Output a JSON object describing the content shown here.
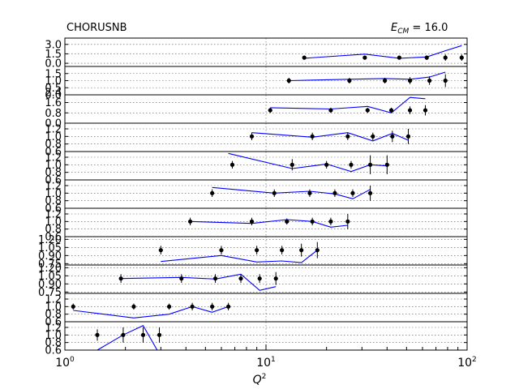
{
  "chart_data": {
    "type": "line",
    "title_left": "CHORUSNB",
    "title_right_prefix": "E",
    "title_right_sub": "CM",
    "title_right_value": " = 16.0",
    "xlabel_base": "Q",
    "xlabel_exp": "2",
    "x_scale": "log",
    "xlim": [
      1,
      100
    ],
    "x_ticks": [
      {
        "value": 1,
        "mant": "10",
        "exp": "0"
      },
      {
        "value": 10,
        "mant": "10",
        "exp": "1"
      },
      {
        "value": 100,
        "mant": "10",
        "exp": "2"
      }
    ],
    "grid": true,
    "panels": [
      {
        "ylim": [
          -0.5,
          4.0
        ],
        "yticks": [
          "0.0",
          "1.5",
          "3.0"
        ],
        "ytick_values": [
          0.0,
          1.5,
          3.0
        ],
        "points": [
          [
            15.5,
            0.9,
            0.15
          ],
          [
            31,
            0.9,
            0.25
          ],
          [
            46,
            0.9,
            0.3
          ],
          [
            63,
            0.9,
            0.35
          ],
          [
            78,
            0.9,
            0.5
          ],
          [
            94,
            0.9,
            0.5
          ]
        ],
        "theory": [
          [
            15.5,
            0.8
          ],
          [
            31,
            1.45
          ],
          [
            46,
            0.8
          ],
          [
            63,
            1.0
          ],
          [
            78,
            2.0
          ],
          [
            94,
            2.8
          ]
        ]
      },
      {
        "ylim": [
          0.0,
          2.0
        ],
        "yticks": [
          "0.0",
          "0.5",
          "1.0",
          "1.5"
        ],
        "ytick_values": [
          0.0,
          0.5,
          1.0,
          1.5
        ],
        "points": [
          [
            13,
            1.0,
            0.2
          ],
          [
            26,
            1.0,
            0.2
          ],
          [
            39,
            1.0,
            0.2
          ],
          [
            52,
            1.0,
            0.25
          ],
          [
            65,
            1.0,
            0.3
          ],
          [
            78,
            1.0,
            0.45
          ]
        ],
        "theory": [
          [
            13,
            1.0
          ],
          [
            26,
            1.1
          ],
          [
            39,
            1.15
          ],
          [
            52,
            1.1
          ],
          [
            65,
            1.25
          ],
          [
            78,
            1.6
          ]
        ]
      },
      {
        "ylim": [
          0.0,
          2.2
        ],
        "yticks": [
          "0.0",
          "0.8",
          "1.6",
          "2.4"
        ],
        "ytick_values": [
          0.0,
          0.8,
          1.6,
          2.4
        ],
        "points": [
          [
            10.5,
            1.0,
            0.2
          ],
          [
            21,
            1.0,
            0.2
          ],
          [
            32,
            1.0,
            0.2
          ],
          [
            42,
            1.0,
            0.2
          ],
          [
            52,
            1.0,
            0.3
          ],
          [
            62,
            1.0,
            0.4
          ]
        ],
        "theory": [
          [
            10.5,
            1.2
          ],
          [
            21,
            1.1
          ],
          [
            32,
            1.3
          ],
          [
            42,
            0.8
          ],
          [
            52,
            2.0
          ],
          [
            62,
            1.9
          ]
        ]
      },
      {
        "ylim": [
          0.6,
          1.35
        ],
        "yticks": [
          "0.6",
          "0.8",
          "1.0",
          "1.2"
        ],
        "ytick_values": [
          0.6,
          0.8,
          1.0,
          1.2
        ],
        "points": [
          [
            8.5,
            1.0,
            0.1
          ],
          [
            17,
            1.0,
            0.1
          ],
          [
            25.5,
            1.0,
            0.1
          ],
          [
            34,
            1.0,
            0.1
          ],
          [
            42.5,
            1.0,
            0.15
          ],
          [
            51,
            1.0,
            0.2
          ]
        ],
        "theory": [
          [
            8.5,
            1.1
          ],
          [
            17,
            0.98
          ],
          [
            25.5,
            1.1
          ],
          [
            34,
            0.88
          ],
          [
            42.5,
            1.08
          ],
          [
            51,
            0.9
          ]
        ]
      },
      {
        "ylim": [
          0.6,
          1.35
        ],
        "yticks": [
          "0.6",
          "0.8",
          "1.0",
          "1.2"
        ],
        "ytick_values": [
          0.6,
          0.8,
          1.0,
          1.2
        ],
        "points": [
          [
            6.8,
            1.0,
            0.1
          ],
          [
            13.5,
            1.0,
            0.15
          ],
          [
            20,
            1.0,
            0.1
          ],
          [
            26.5,
            1.0,
            0.1
          ],
          [
            33,
            1.0,
            0.25
          ],
          [
            40,
            1.0,
            0.25
          ]
        ],
        "theory": [
          [
            6.5,
            1.3
          ],
          [
            13.5,
            0.9
          ],
          [
            20,
            1.02
          ],
          [
            26.5,
            0.82
          ],
          [
            33,
            1.0
          ],
          [
            40,
            0.97
          ]
        ]
      },
      {
        "ylim": [
          0.6,
          1.35
        ],
        "yticks": [
          "0.6",
          "0.8",
          "1.0",
          "1.2"
        ],
        "ytick_values": [
          0.6,
          0.8,
          1.0,
          1.2
        ],
        "points": [
          [
            5.4,
            1.0,
            0.1
          ],
          [
            11,
            1.0,
            0.1
          ],
          [
            16.5,
            1.0,
            0.1
          ],
          [
            22,
            1.0,
            0.1
          ],
          [
            27,
            1.0,
            0.1
          ],
          [
            33,
            1.0,
            0.2
          ]
        ],
        "theory": [
          [
            5.4,
            1.15
          ],
          [
            11,
            1.0
          ],
          [
            16.5,
            1.05
          ],
          [
            22,
            0.98
          ],
          [
            27,
            0.85
          ],
          [
            33,
            1.1
          ]
        ]
      },
      {
        "ylim": [
          0.6,
          1.35
        ],
        "yticks": [
          "0.6",
          "0.8",
          "1.0",
          "1.2"
        ],
        "ytick_values": [
          0.6,
          0.8,
          1.0,
          1.2
        ],
        "points": [
          [
            4.2,
            1.0,
            0.1
          ],
          [
            8.5,
            1.0,
            0.1
          ],
          [
            12.7,
            1.0,
            0.08
          ],
          [
            17,
            1.0,
            0.1
          ],
          [
            21,
            1.0,
            0.1
          ],
          [
            25.5,
            1.0,
            0.2
          ]
        ],
        "theory": [
          [
            4.2,
            1.0
          ],
          [
            8.5,
            0.95
          ],
          [
            12.7,
            1.05
          ],
          [
            17,
            1.0
          ],
          [
            21,
            0.85
          ],
          [
            25.5,
            0.9
          ]
        ]
      },
      {
        "ylim": [
          0.725,
          1.25
        ],
        "yticks": [
          "0.75",
          "0.90",
          "1.05",
          "1.20"
        ],
        "ytick_values": [
          0.75,
          0.9,
          1.05,
          1.2
        ],
        "points": [
          [
            3,
            1.0,
            0.08
          ],
          [
            6,
            1.0,
            0.08
          ],
          [
            9,
            1.0,
            0.08
          ],
          [
            12,
            1.0,
            0.08
          ],
          [
            15,
            1.0,
            0.12
          ],
          [
            18,
            1.0,
            0.15
          ]
        ],
        "theory": [
          [
            3,
            0.79
          ],
          [
            6,
            0.9
          ],
          [
            9,
            0.78
          ],
          [
            12,
            0.8
          ],
          [
            15,
            0.77
          ],
          [
            18,
            1.0
          ]
        ]
      },
      {
        "ylim": [
          0.725,
          1.25
        ],
        "yticks": [
          "0.75",
          "0.90",
          "1.05",
          "1.20"
        ],
        "ytick_values": [
          0.75,
          0.9,
          1.05,
          1.2
        ],
        "points": [
          [
            1.9,
            1.0,
            0.08
          ],
          [
            3.8,
            1.0,
            0.08
          ],
          [
            5.6,
            1.0,
            0.08
          ],
          [
            7.5,
            1.0,
            0.08
          ],
          [
            9.3,
            1.0,
            0.08
          ],
          [
            11.2,
            1.0,
            0.12
          ]
        ],
        "theory": [
          [
            1.9,
            1.0
          ],
          [
            3.8,
            1.02
          ],
          [
            5.6,
            0.99
          ],
          [
            7.5,
            1.08
          ],
          [
            9.3,
            0.78
          ],
          [
            11.2,
            0.85
          ]
        ]
      },
      {
        "ylim": [
          0.6,
          1.35
        ],
        "yticks": [
          "0.6",
          "0.8",
          "1.0",
          "1.2"
        ],
        "ytick_values": [
          0.6,
          0.8,
          1.0,
          1.2
        ],
        "points": [
          [
            1.1,
            1.0,
            0.08
          ],
          [
            2.2,
            1.0,
            0.08
          ],
          [
            3.3,
            1.0,
            0.08
          ],
          [
            4.3,
            1.0,
            0.1
          ],
          [
            5.4,
            1.0,
            0.1
          ],
          [
            6.5,
            1.0,
            0.1
          ]
        ],
        "theory": [
          [
            1.1,
            0.9
          ],
          [
            2.2,
            0.7
          ],
          [
            3.3,
            0.8
          ],
          [
            4.3,
            1.0
          ],
          [
            5.4,
            0.85
          ],
          [
            6.5,
            1.0
          ]
        ]
      },
      {
        "ylim": [
          0.6,
          1.35
        ],
        "yticks": [
          "0.6",
          "0.8",
          "1.0",
          "1.2"
        ],
        "ytick_values": [
          0.6,
          0.8,
          1.0,
          1.2
        ],
        "points": [
          [
            1.45,
            1.0,
            0.15
          ],
          [
            1.95,
            1.0,
            0.2
          ],
          [
            2.45,
            1.0,
            0.2
          ],
          [
            2.95,
            1.0,
            0.2
          ]
        ],
        "theory": [
          [
            1.45,
            0.6
          ],
          [
            1.95,
            1.0
          ],
          [
            2.45,
            1.25
          ],
          [
            2.95,
            0.5
          ]
        ]
      }
    ]
  }
}
